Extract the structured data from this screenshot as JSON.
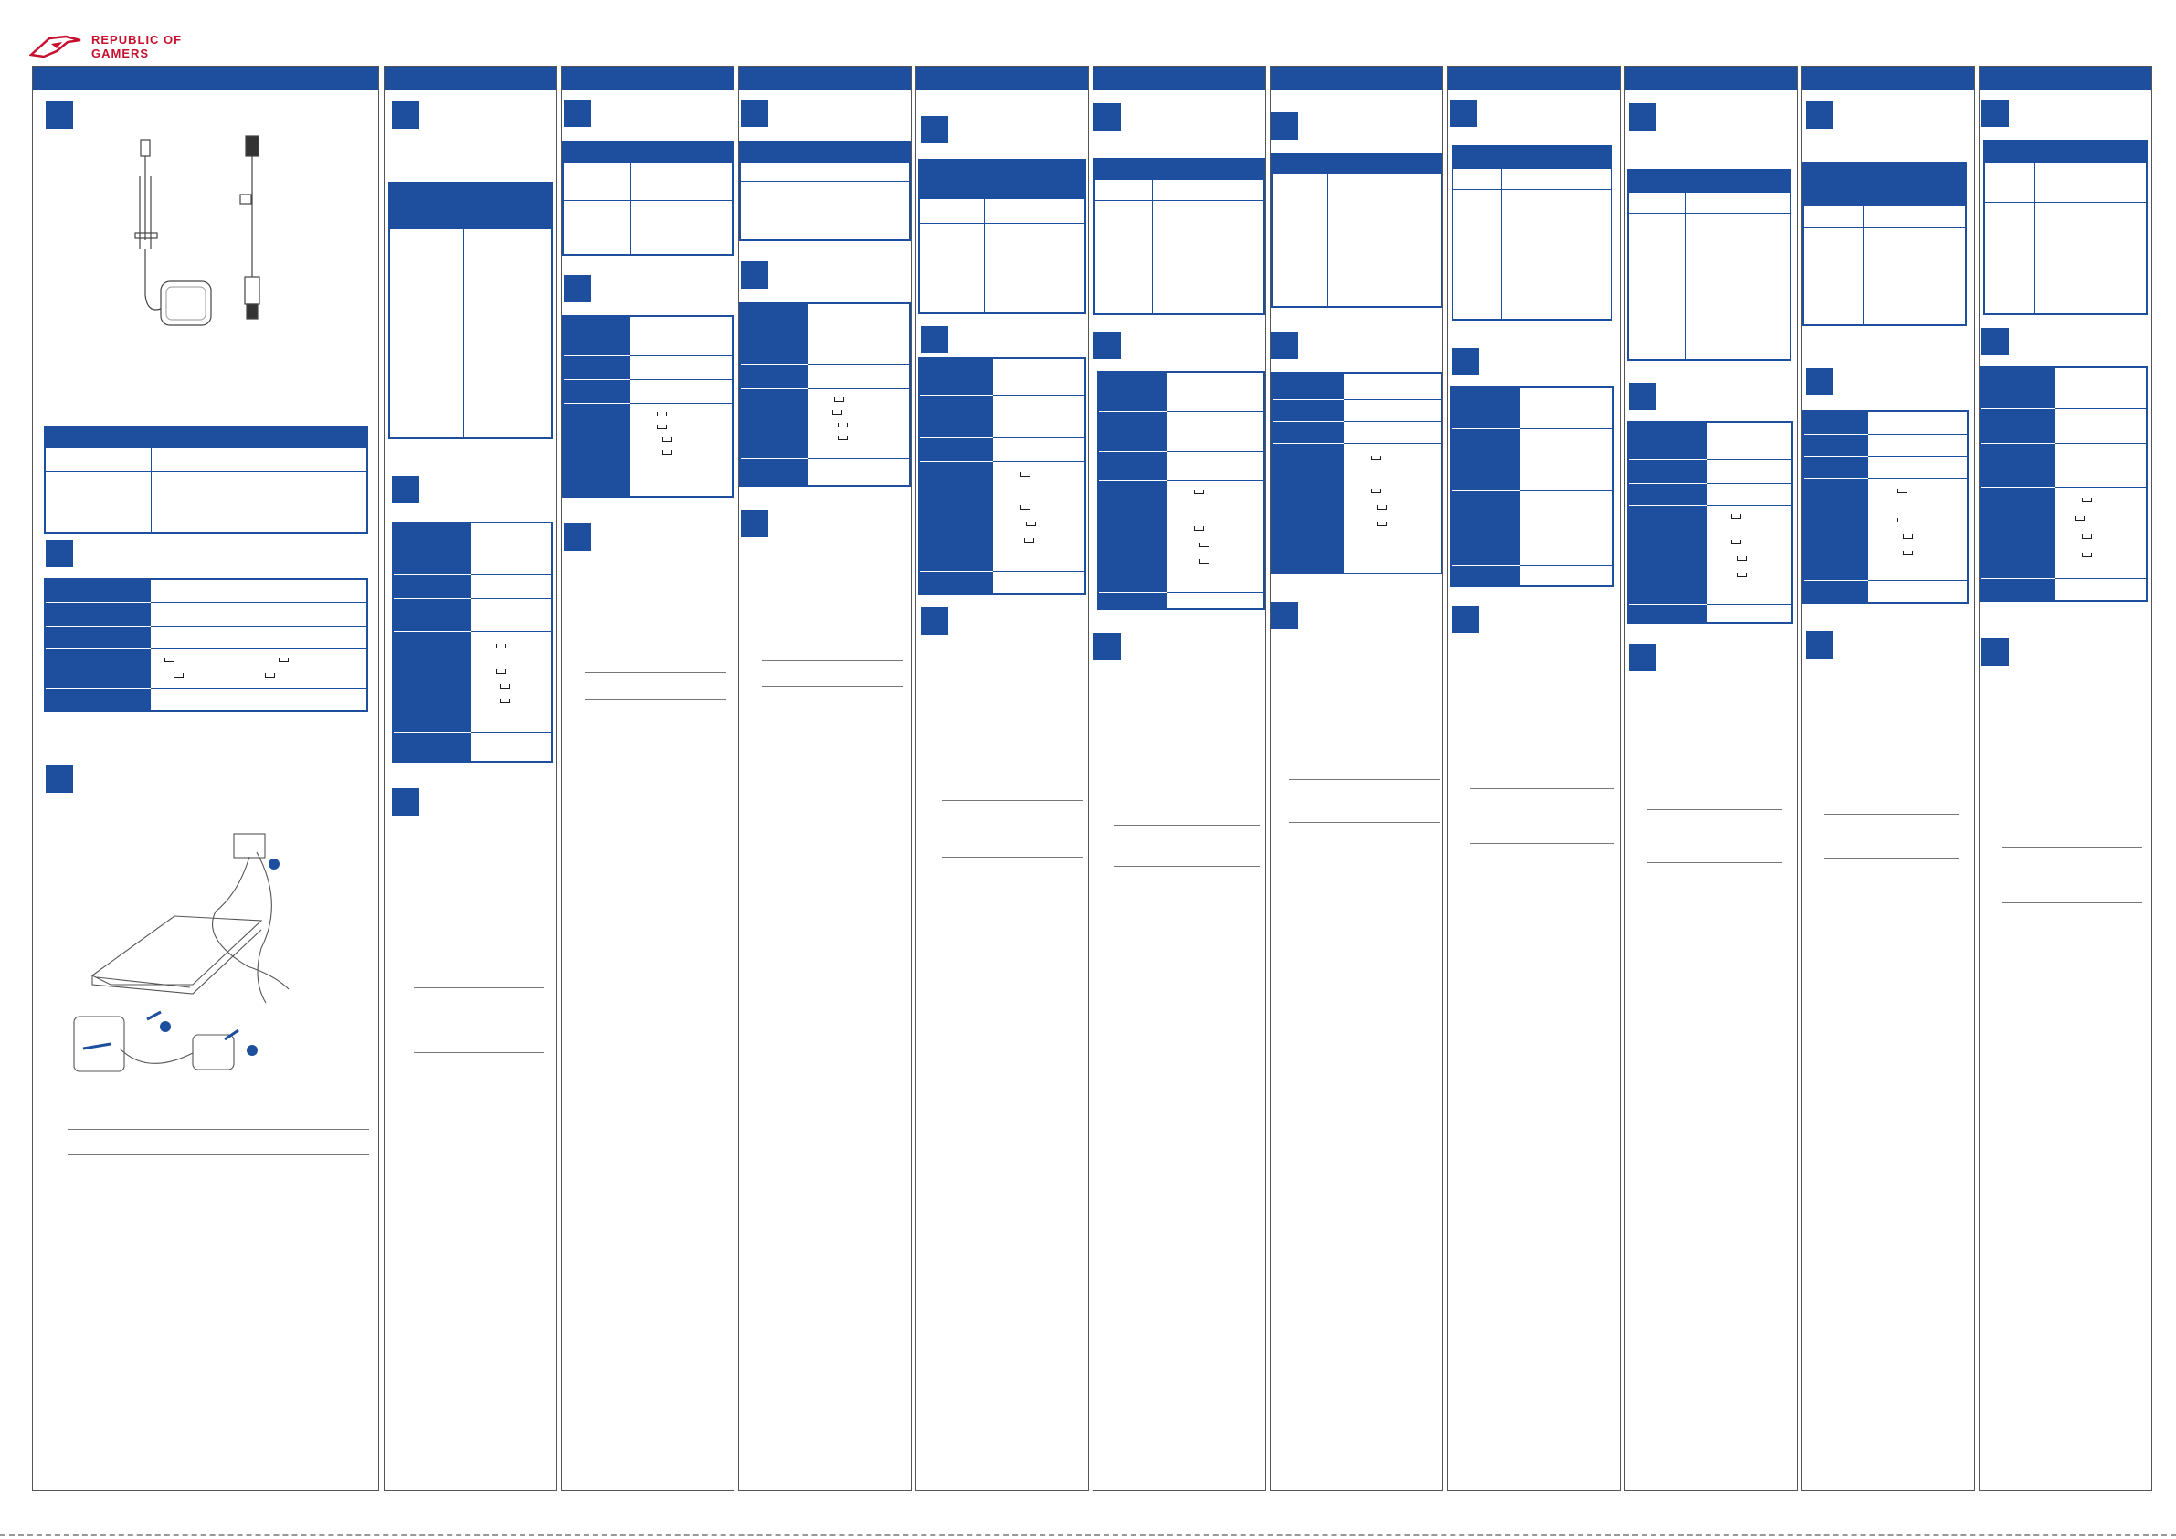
{
  "brand": {
    "name_line1": "REPUBLIC OF",
    "name_line2": "GAMERS",
    "color": "#c8102e"
  },
  "colors": {
    "accent": "#1e4f9e",
    "border": "#555555"
  },
  "icons": [
    "rog-eye-logo",
    "power-adapter-illustration",
    "power-cord-illustration",
    "laptop-charging-illustration",
    "number-1-badge",
    "number-2-badge",
    "number-3-badge"
  ]
}
